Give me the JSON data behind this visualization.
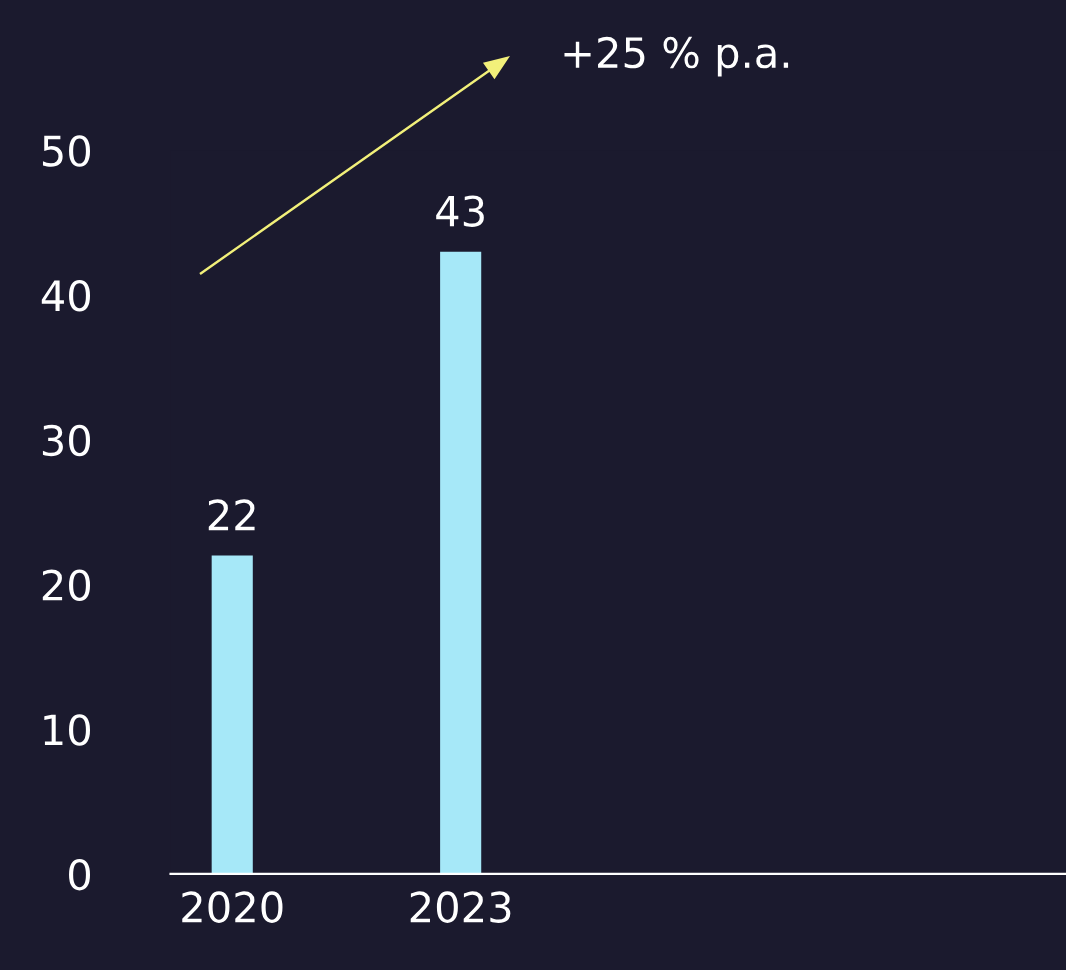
{
  "chart_data": {
    "type": "bar",
    "categories": [
      "2020",
      "2023"
    ],
    "values": [
      22,
      43
    ],
    "color": "#a6e8f8",
    "ylim": [
      0,
      50
    ],
    "yticks": [
      0,
      10,
      20,
      30,
      40,
      50
    ],
    "grid": false,
    "data_labels": true,
    "annotations": [
      "+25 % p.a."
    ]
  }
}
